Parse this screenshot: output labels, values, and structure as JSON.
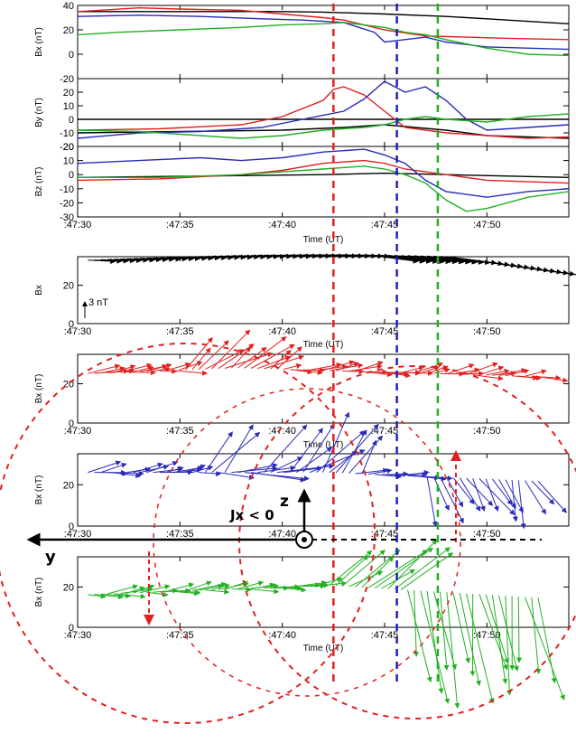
{
  "colors": {
    "black": "#000000",
    "red": "#e02020",
    "blue": "#2a2ab8",
    "green": "#22b022",
    "marker_red": "#e02020",
    "marker_blue": "#2020c0",
    "marker_green": "#20b020"
  },
  "chart_data": [
    {
      "type": "line",
      "panel": "Bx",
      "ylabel": "Bx (nT)",
      "ylim": [
        -20,
        40
      ],
      "yticks": [
        -20,
        0,
        20,
        40
      ],
      "series": [
        {
          "color": "black",
          "x": [
            0,
            5,
            10,
            12,
            15,
            18,
            20,
            24
          ],
          "y": [
            35,
            35,
            35,
            34.5,
            33,
            31,
            29,
            25
          ]
        },
        {
          "color": "red",
          "x": [
            0,
            3,
            5,
            8,
            10,
            12,
            13,
            15,
            17,
            19,
            21,
            24
          ],
          "y": [
            35,
            38,
            37,
            36,
            33,
            30,
            28,
            20,
            15,
            14,
            13,
            12
          ]
        },
        {
          "color": "blue",
          "x": [
            0,
            3,
            6,
            9,
            11,
            13,
            14.5,
            15,
            16,
            17,
            18,
            20,
            24
          ],
          "y": [
            31,
            32,
            31,
            29,
            28,
            26,
            18,
            10,
            12,
            14,
            10,
            6,
            4
          ]
        },
        {
          "color": "green",
          "x": [
            0,
            2,
            5,
            8,
            10,
            12,
            13,
            15,
            16,
            17,
            18,
            20,
            22,
            24
          ],
          "y": [
            16,
            18,
            20,
            22,
            24,
            25,
            26,
            22,
            18,
            16,
            12,
            5,
            0,
            -1
          ]
        }
      ]
    },
    {
      "type": "line",
      "panel": "By",
      "ylabel": "By (nT)",
      "ylim": [
        -20,
        30
      ],
      "yticks": [
        -20,
        -10,
        0,
        10,
        20
      ],
      "series": [
        {
          "color": "black",
          "x": [
            0,
            5,
            10,
            15,
            20,
            24
          ],
          "y": [
            0,
            0,
            0,
            0,
            0,
            0
          ]
        },
        {
          "color": "black",
          "x": [
            0,
            5,
            10,
            13,
            15,
            18,
            20,
            24
          ],
          "y": [
            -10,
            -9,
            -8,
            -6,
            -4,
            -8,
            -12,
            -14
          ]
        },
        {
          "color": "red",
          "x": [
            0,
            4,
            8,
            10,
            12,
            12.5,
            13,
            14,
            15,
            16,
            18,
            20,
            22,
            24
          ],
          "y": [
            -8,
            -7,
            -4,
            2,
            14,
            22,
            24,
            18,
            6,
            -6,
            -10,
            -12,
            -14,
            -13
          ]
        },
        {
          "color": "blue",
          "x": [
            0,
            3,
            6,
            9,
            11,
            13,
            14,
            15,
            16,
            17,
            18,
            19,
            20,
            22,
            24
          ],
          "y": [
            -14,
            -10,
            -9,
            -6,
            0,
            6,
            15,
            28,
            20,
            24,
            14,
            0,
            -8,
            -6,
            -4
          ]
        },
        {
          "color": "green",
          "x": [
            0,
            3,
            6,
            8,
            10,
            12,
            14,
            15,
            16,
            17,
            18,
            20,
            22,
            24
          ],
          "y": [
            -8,
            -9,
            -12,
            -14,
            -12,
            -8,
            -6,
            -4,
            0,
            2,
            0,
            -2,
            2,
            4
          ]
        }
      ]
    },
    {
      "type": "line",
      "panel": "Bz",
      "ylabel": "Bz (nT)",
      "ylim": [
        -30,
        20
      ],
      "yticks": [
        -30,
        -20,
        -10,
        0,
        10,
        20
      ],
      "series": [
        {
          "color": "black",
          "x": [
            0,
            6,
            12,
            15,
            18,
            24
          ],
          "y": [
            -2,
            -1,
            0,
            1,
            0,
            -2
          ]
        },
        {
          "color": "red",
          "x": [
            0,
            4,
            8,
            10,
            12,
            14,
            15,
            16,
            18,
            20,
            24
          ],
          "y": [
            -4,
            -3,
            0,
            3,
            8,
            10,
            8,
            4,
            0,
            -4,
            -6
          ]
        },
        {
          "color": "blue",
          "x": [
            0,
            3,
            6,
            8,
            10,
            12,
            14,
            15,
            16,
            17,
            18,
            20,
            22,
            24
          ],
          "y": [
            8,
            10,
            12,
            10,
            12,
            16,
            18,
            14,
            8,
            -4,
            -12,
            -16,
            -12,
            -10
          ]
        },
        {
          "color": "green",
          "x": [
            0,
            4,
            8,
            10,
            12,
            14,
            15,
            16,
            17,
            18,
            19,
            20,
            22,
            24
          ],
          "y": [
            -2,
            -2,
            0,
            2,
            4,
            6,
            4,
            0,
            -6,
            -18,
            -26,
            -24,
            -16,
            -12
          ]
        }
      ]
    },
    {
      "type": "vector",
      "panel": "black-vectors",
      "ylabel": "Bx",
      "ylim": [
        0,
        35
      ],
      "yticks": [
        0,
        20
      ],
      "scale_label": "3 nT",
      "color": "black"
    },
    {
      "type": "vector",
      "panel": "red-vectors",
      "ylabel": "Bx (nT)",
      "ylim": [
        0,
        35
      ],
      "yticks": [
        0,
        20
      ],
      "color": "red"
    },
    {
      "type": "vector",
      "panel": "blue-vectors",
      "ylabel": "Bx (nT)",
      "ylim": [
        0,
        35
      ],
      "yticks": [
        0,
        20
      ],
      "color": "blue"
    },
    {
      "type": "vector",
      "panel": "green-vectors",
      "ylabel": "Bx (nT)",
      "ylim": [
        0,
        35
      ],
      "yticks": [
        0,
        20
      ],
      "color": "green"
    }
  ],
  "time_axis": {
    "xlim": [
      0,
      24
    ],
    "ticks": [
      0,
      5,
      10,
      15,
      20
    ],
    "tick_labels": [
      ":47:30",
      ":47:35",
      ":47:40",
      ":47:45",
      ":47:50"
    ],
    "xlabel": "Time (UT)"
  },
  "markers": [
    {
      "color": "marker_red",
      "time": 12.5
    },
    {
      "color": "marker_blue",
      "time": 15.6
    },
    {
      "color": "marker_green",
      "time": 17.6
    }
  ],
  "annotations": {
    "current_label": "Jx < 0",
    "z_axis_label": "z",
    "y_axis_label": "y"
  }
}
